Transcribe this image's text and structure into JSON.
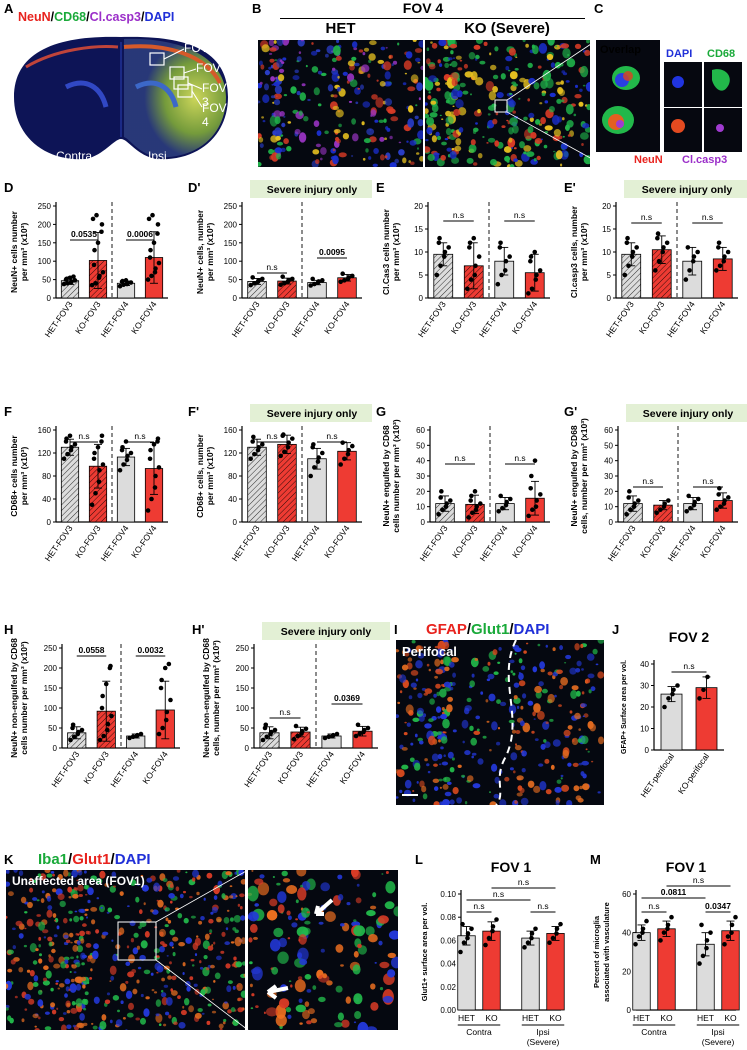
{
  "colors": {
    "het": "#dcdcdc",
    "ko": "#ee3b33",
    "banner": "#e3f0d5",
    "red": "#e8231e",
    "green": "#1aaa3a",
    "blue": "#2030d8",
    "purple": "#9b2fc9"
  },
  "panelA": {
    "letter": "A",
    "title_parts": [
      {
        "text": "NeuN",
        "color": "#e8231e"
      },
      {
        "text": "/",
        "color": "#000"
      },
      {
        "text": "CD68",
        "color": "#1aaa3a"
      },
      {
        "text": "/",
        "color": "#000"
      },
      {
        "text": "Cl.casp3",
        "color": "#9b2fc9"
      },
      {
        "text": "/",
        "color": "#000"
      },
      {
        "text": "DAPI",
        "color": "#2030d8"
      }
    ],
    "fovs": [
      "FOV 1",
      "FOV 2",
      "FOV 3",
      "FOV 4"
    ],
    "contra": "Contra",
    "ipsi": "Ipsi"
  },
  "panelB": {
    "letter": "B",
    "header": "FOV 4",
    "left": "HET",
    "right": "KO (Severe)"
  },
  "panelC": {
    "letter": "C",
    "overlap": "Overlap",
    "dapi": "DAPI",
    "cd68": "CD68",
    "neun": "NeuN",
    "clcasp3": "Cl.casp3"
  },
  "panelI": {
    "letter": "I",
    "title_parts": [
      {
        "text": "GFAP",
        "color": "#e8231e"
      },
      {
        "text": "/",
        "color": "#000"
      },
      {
        "text": "Glut1",
        "color": "#1aaa3a"
      },
      {
        "text": "/",
        "color": "#000"
      },
      {
        "text": "DAPI",
        "color": "#2030d8"
      }
    ],
    "label": "Perifocal"
  },
  "panelK": {
    "letter": "K",
    "title_parts": [
      {
        "text": "Iba1",
        "color": "#1aaa3a"
      },
      {
        "text": "/",
        "color": "#000"
      },
      {
        "text": "Glut1",
        "color": "#e8231e"
      },
      {
        "text": "/",
        "color": "#000"
      },
      {
        "text": "DAPI",
        "color": "#2030d8"
      }
    ],
    "label": "Unaffected area (FOV1)"
  },
  "chart_data": [
    {
      "id": "D",
      "type": "bar",
      "categories": [
        "HET-FOV3",
        "KO-FOV3",
        "HET-FOV4",
        "KO-FOV4"
      ],
      "values": [
        47,
        102,
        40,
        110
      ],
      "errors": [
        10,
        76,
        6,
        70
      ],
      "ylabel": [
        "NeuN+ cells number",
        "per mm³ (x10³)"
      ],
      "ylim": [
        0,
        250
      ],
      "ticks": [
        0,
        50,
        100,
        150,
        200,
        250
      ],
      "banner": "",
      "sig": [
        {
          "pair": [
            0,
            1
          ],
          "label": "0.0535"
        },
        {
          "pair": [
            2,
            3
          ],
          "label": "0.0006"
        }
      ],
      "points": [
        [
          38,
          40,
          42,
          45,
          48,
          50,
          52,
          55,
          58
        ],
        [
          35,
          40,
          55,
          60,
          70,
          90,
          130,
          150,
          180,
          200,
          215,
          225
        ],
        [
          32,
          36,
          38,
          40,
          42,
          44,
          46,
          48
        ],
        [
          50,
          60,
          70,
          80,
          95,
          110,
          130,
          150,
          175,
          200,
          215,
          225
        ]
      ]
    },
    {
      "id": "D'",
      "type": "bar",
      "categories": [
        "HET-FOV3",
        "KO-FOV3",
        "HET-FOV4",
        "KO-FOV4"
      ],
      "values": [
        45,
        46,
        42,
        55
      ],
      "errors": [
        8,
        8,
        6,
        9
      ],
      "ylabel": [
        "NeuN+ cells, number",
        "per mm³ (x10³)"
      ],
      "ylim": [
        0,
        250
      ],
      "ticks": [
        0,
        50,
        100,
        150,
        200,
        250
      ],
      "banner": "Severe injury only",
      "sig": [
        {
          "pair": [
            0,
            1
          ],
          "label": "n.s"
        },
        {
          "pair": [
            2,
            3
          ],
          "label": "0.0095"
        }
      ],
      "points": [
        [
          35,
          40,
          44,
          48,
          52,
          56
        ],
        [
          36,
          40,
          45,
          48,
          52,
          58
        ],
        [
          34,
          38,
          42,
          45,
          48,
          52
        ],
        [
          44,
          48,
          52,
          56,
          60,
          66
        ]
      ]
    },
    {
      "id": "E",
      "type": "bar",
      "categories": [
        "HET-FOV3",
        "KO-FOV3",
        "HET-FOV4",
        "KO-FOV4"
      ],
      "values": [
        9.5,
        7,
        8,
        5.5
      ],
      "errors": [
        2.5,
        5,
        3,
        4
      ],
      "ylabel": [
        "Cl.Cas3 cells number",
        "per mm³ (x10³)"
      ],
      "ylim": [
        0,
        20
      ],
      "ticks": [
        0,
        5,
        10,
        15,
        20
      ],
      "banner": "",
      "sig": [
        {
          "pair": [
            0,
            1
          ],
          "label": "n.s"
        },
        {
          "pair": [
            2,
            3
          ],
          "label": "n.s"
        }
      ],
      "points": [
        [
          5,
          7,
          9,
          10,
          11,
          12,
          13
        ],
        [
          2,
          4,
          5,
          7,
          9,
          11,
          12,
          13
        ],
        [
          3,
          5,
          6,
          8,
          9,
          11,
          12
        ],
        [
          1,
          2,
          4,
          5,
          6,
          8,
          9,
          10
        ]
      ]
    },
    {
      "id": "E'",
      "type": "bar",
      "categories": [
        "HET-FOV3",
        "KO-FOV3",
        "HET-FOV4",
        "KO-FOV4"
      ],
      "values": [
        9.5,
        10.5,
        8,
        8.5
      ],
      "errors": [
        2.5,
        3,
        3,
        2.5
      ],
      "ylabel": [
        "Cl.casp3 cells, number",
        "per mm³ (x10³)"
      ],
      "ylim": [
        0,
        20
      ],
      "ticks": [
        0,
        5,
        10,
        15,
        20
      ],
      "banner": "Severe injury only",
      "sig": [
        {
          "pair": [
            0,
            1
          ],
          "label": "n.s"
        },
        {
          "pair": [
            2,
            3
          ],
          "label": "n.s"
        }
      ],
      "points": [
        [
          5,
          7,
          9,
          10,
          11,
          12,
          13
        ],
        [
          6,
          8,
          10,
          11,
          12,
          13,
          14
        ],
        [
          4,
          6,
          8,
          9,
          10,
          11
        ],
        [
          6,
          7,
          8,
          9,
          10,
          11,
          12
        ]
      ]
    },
    {
      "id": "F",
      "type": "bar",
      "categories": [
        "HET-FOV3",
        "KO-FOV3",
        "HET-FOV4",
        "KO-FOV4"
      ],
      "values": [
        130,
        97,
        113,
        93
      ],
      "errors": [
        14,
        38,
        15,
        45
      ],
      "ylabel": [
        "CD68+ cells number",
        "per mm³ (x10³)"
      ],
      "ylim": [
        0,
        160
      ],
      "ticks": [
        0,
        40,
        80,
        120,
        160
      ],
      "banner": "",
      "sig": [
        {
          "pair": [
            0,
            1
          ],
          "label": "n.s"
        },
        {
          "pair": [
            2,
            3
          ],
          "label": "n.s"
        }
      ],
      "points": [
        [
          110,
          118,
          125,
          130,
          135,
          140,
          145,
          150
        ],
        [
          30,
          50,
          70,
          90,
          100,
          110,
          120,
          130,
          140,
          150
        ],
        [
          90,
          100,
          108,
          115,
          120,
          125,
          130,
          140
        ],
        [
          20,
          40,
          60,
          80,
          95,
          110,
          125,
          135,
          140,
          145
        ]
      ]
    },
    {
      "id": "F'",
      "type": "bar",
      "categories": [
        "HET-FOV3",
        "KO-FOV3",
        "HET-FOV4",
        "KO-FOV4"
      ],
      "values": [
        130,
        135,
        110,
        123
      ],
      "errors": [
        14,
        16,
        18,
        15
      ],
      "ylabel": [
        "CD68+ cells, number",
        "per mm³ (x10³)"
      ],
      "ylim": [
        0,
        160
      ],
      "ticks": [
        0,
        40,
        80,
        120,
        160
      ],
      "banner": "Severe injury only",
      "sig": [
        {
          "pair": [
            0,
            1
          ],
          "label": "n.s"
        },
        {
          "pair": [
            2,
            3
          ],
          "label": "n.s"
        }
      ],
      "points": [
        [
          110,
          118,
          125,
          130,
          135,
          140,
          148
        ],
        [
          115,
          122,
          130,
          138,
          145,
          150,
          152
        ],
        [
          80,
          95,
          105,
          112,
          120,
          130,
          135
        ],
        [
          100,
          110,
          118,
          125,
          132,
          138
        ]
      ]
    },
    {
      "id": "G",
      "type": "bar",
      "categories": [
        "HET-FOV3",
        "KO-FOV3",
        "HET-FOV4",
        "KO-FOV4"
      ],
      "values": [
        12,
        11.5,
        12,
        15.5
      ],
      "errors": [
        5,
        6,
        4,
        11
      ],
      "ylabel": [
        "NeuN+ engulfed by CD68",
        "cells number per mm³ (x10³)"
      ],
      "ylim": [
        0,
        60
      ],
      "ticks": [
        0,
        10,
        20,
        30,
        40,
        50,
        60
      ],
      "banner": "",
      "sig": [
        {
          "pair": [
            0,
            1
          ],
          "label": "n.s"
        },
        {
          "pair": [
            2,
            3
          ],
          "label": "n.s"
        }
      ],
      "points": [
        [
          5,
          8,
          10,
          12,
          14,
          16,
          20
        ],
        [
          3,
          6,
          8,
          10,
          12,
          14,
          17,
          20
        ],
        [
          7,
          9,
          11,
          13,
          15,
          17
        ],
        [
          4,
          8,
          10,
          14,
          18,
          22,
          30,
          40
        ]
      ]
    },
    {
      "id": "G'",
      "type": "bar",
      "categories": [
        "HET-FOV3",
        "KO-FOV3",
        "HET-FOV4",
        "KO-FOV4"
      ],
      "values": [
        12,
        11,
        12,
        14
      ],
      "errors": [
        5,
        3,
        4,
        5
      ],
      "ylabel": [
        "NeuN+ engulfed by CD68",
        "cells, number per mm³ (x10³)"
      ],
      "ylim": [
        0,
        60
      ],
      "ticks": [
        0,
        10,
        20,
        30,
        40,
        50,
        60
      ],
      "banner": "Severe injury only",
      "sig": [
        {
          "pair": [
            0,
            1
          ],
          "label": "n.s"
        },
        {
          "pair": [
            2,
            3
          ],
          "label": "n.s"
        }
      ],
      "points": [
        [
          5,
          8,
          10,
          12,
          14,
          16,
          20
        ],
        [
          6,
          8,
          10,
          12,
          14
        ],
        [
          7,
          9,
          11,
          13,
          15,
          17
        ],
        [
          8,
          10,
          12,
          14,
          16,
          18,
          22
        ]
      ]
    },
    {
      "id": "H",
      "type": "bar",
      "categories": [
        "HET-FOV3",
        "KO-FOV3",
        "HET-FOV4",
        "KO-FOV4"
      ],
      "values": [
        38,
        92,
        30,
        95
      ],
      "errors": [
        15,
        75,
        5,
        72
      ],
      "ylabel": [
        "NeuN+ non-engulfed by CD68",
        "cells number per mm³ (x10³)"
      ],
      "ylim": [
        0,
        250
      ],
      "ticks": [
        0,
        50,
        100,
        150,
        200,
        250
      ],
      "banner": "",
      "sig": [
        {
          "pair": [
            0,
            1
          ],
          "label": "0.0558"
        },
        {
          "pair": [
            2,
            3
          ],
          "label": "0.0032"
        }
      ],
      "points": [
        [
          20,
          28,
          35,
          40,
          45,
          50,
          58
        ],
        [
          20,
          30,
          45,
          60,
          80,
          100,
          130,
          160,
          200,
          205
        ],
        [
          25,
          28,
          30,
          32,
          35
        ],
        [
          35,
          50,
          70,
          90,
          120,
          150,
          170,
          200,
          210
        ]
      ]
    },
    {
      "id": "H'",
      "type": "bar",
      "categories": [
        "HET-FOV3",
        "KO-FOV3",
        "HET-FOV4",
        "KO-FOV4"
      ],
      "values": [
        38,
        40,
        30,
        42
      ],
      "errors": [
        15,
        12,
        5,
        12
      ],
      "ylabel": [
        "NeuN+ non-engulfed by CD68",
        "cells, number per mm³ (x10³)"
      ],
      "ylim": [
        0,
        250
      ],
      "ticks": [
        0,
        50,
        100,
        150,
        200,
        250
      ],
      "banner": "Severe injury only",
      "sig": [
        {
          "pair": [
            0,
            1
          ],
          "label": "n.s"
        },
        {
          "pair": [
            2,
            3
          ],
          "label": "0.0369"
        }
      ],
      "points": [
        [
          20,
          28,
          35,
          40,
          45,
          50,
          58
        ],
        [
          22,
          30,
          36,
          42,
          48,
          55
        ],
        [
          25,
          28,
          30,
          32,
          35
        ],
        [
          30,
          36,
          40,
          45,
          50,
          58
        ]
      ]
    },
    {
      "id": "J",
      "type": "bar",
      "title": "FOV 2",
      "categories": [
        "HET-perifocal",
        "KO-perifocal"
      ],
      "values": [
        26,
        29
      ],
      "errors": [
        3.5,
        5
      ],
      "ylabel": [
        "GFAP+ Surface area per vol."
      ],
      "ylim": [
        0,
        40
      ],
      "ticks": [
        0,
        10,
        20,
        30,
        40
      ],
      "banner": "",
      "sig": [
        {
          "pair": [
            0,
            1
          ],
          "label": "n.s"
        }
      ],
      "points": [
        [
          20,
          24,
          26,
          28,
          30
        ],
        [
          24,
          28,
          34
        ]
      ]
    },
    {
      "id": "L",
      "type": "bar",
      "title": "FOV 1",
      "categories": [
        "HET",
        "KO",
        "HET",
        "KO"
      ],
      "groups": [
        "Contra",
        "Ipsi (Severe)"
      ],
      "values": [
        0.064,
        0.068,
        0.062,
        0.066
      ],
      "errors": [
        0.008,
        0.008,
        0.006,
        0.006
      ],
      "ylabel": [
        "Glut1+ surface area per vol."
      ],
      "ylim": [
        0,
        0.1
      ],
      "ticks": [
        0.0,
        0.02,
        0.04,
        0.06,
        0.08,
        0.1
      ],
      "banner": "",
      "sig": [
        {
          "pair": [
            0,
            1
          ],
          "label": "n.s"
        },
        {
          "pair": [
            2,
            3
          ],
          "label": "n.s"
        },
        {
          "pair": [
            0,
            2
          ],
          "label": "n.s"
        },
        {
          "pair": [
            1,
            3
          ],
          "label": "n.s"
        }
      ],
      "points": [
        [
          0.05,
          0.058,
          0.062,
          0.066,
          0.07,
          0.074
        ],
        [
          0.056,
          0.062,
          0.068,
          0.072,
          0.078
        ],
        [
          0.054,
          0.058,
          0.062,
          0.066,
          0.07
        ],
        [
          0.058,
          0.062,
          0.066,
          0.07,
          0.074
        ]
      ]
    },
    {
      "id": "M",
      "type": "bar",
      "title": "FOV 1",
      "categories": [
        "HET",
        "KO",
        "HET",
        "KO"
      ],
      "groups": [
        "Contra",
        "Ipsi (Severe)"
      ],
      "values": [
        40,
        42,
        34,
        41
      ],
      "errors": [
        4,
        4,
        6,
        5
      ],
      "ylabel": [
        "Percent of microglia",
        "associated with vasculature"
      ],
      "ylim": [
        0,
        60
      ],
      "ticks": [
        0,
        20,
        40,
        60
      ],
      "banner": "",
      "sig": [
        {
          "pair": [
            0,
            1
          ],
          "label": "n.s"
        },
        {
          "pair": [
            2,
            3
          ],
          "label": "0.0347"
        },
        {
          "pair": [
            0,
            2
          ],
          "label": "0.0811"
        },
        {
          "pair": [
            1,
            3
          ],
          "label": "n.s"
        }
      ],
      "points": [
        [
          34,
          38,
          40,
          42,
          46
        ],
        [
          36,
          40,
          42,
          44,
          48
        ],
        [
          24,
          28,
          32,
          36,
          40,
          44
        ],
        [
          34,
          38,
          40,
          44,
          48
        ]
      ]
    }
  ]
}
